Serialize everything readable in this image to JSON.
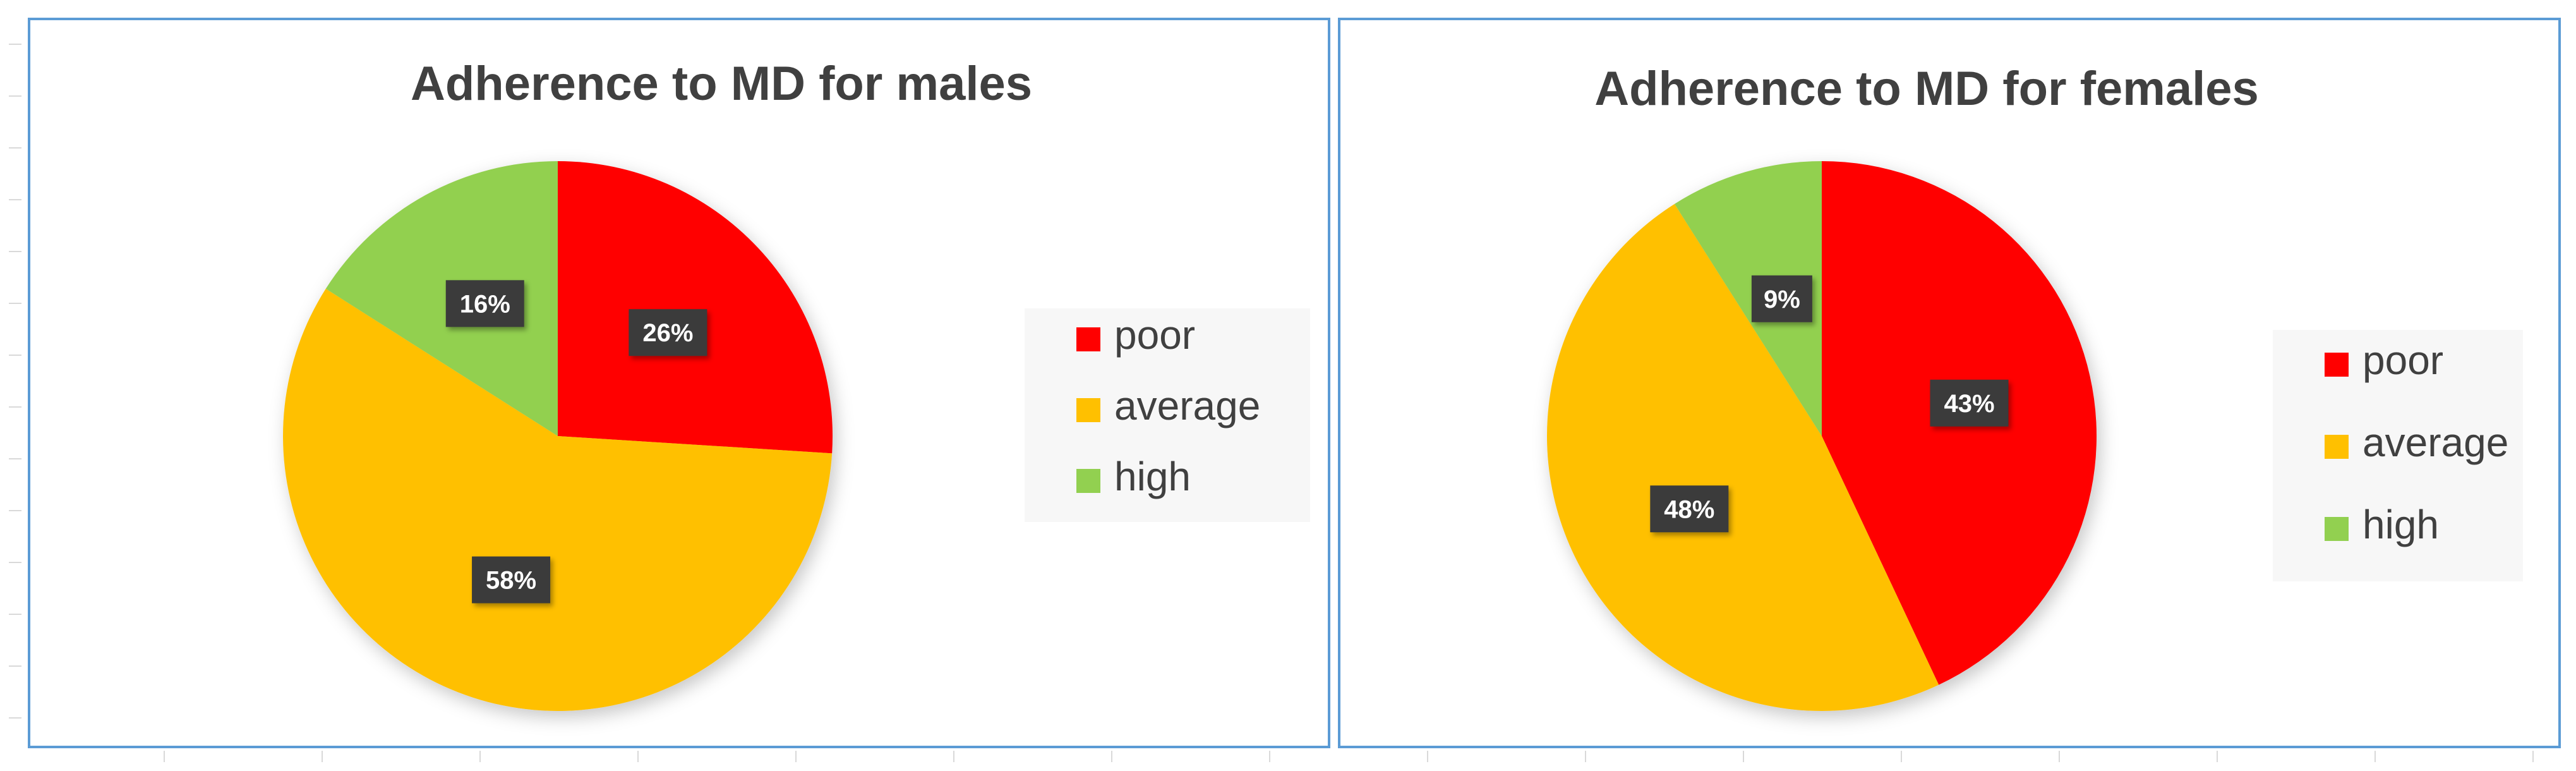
{
  "colors": {
    "poor": "#ff0000",
    "average": "#ffc000",
    "high": "#92d050",
    "frame": "#5b9bd5",
    "title": "#404040",
    "label_bg": "#3a3a3a",
    "legend_bg": "#f7f7f7",
    "gridline": "#d9d9d9"
  },
  "chart_data": [
    {
      "type": "pie",
      "title": "Adherence to MD for males",
      "slices": [
        {
          "label": "poor",
          "value": 26,
          "display": "26%",
          "color": "#ff0000"
        },
        {
          "label": "average",
          "value": 58,
          "display": "58%",
          "color": "#ffc000"
        },
        {
          "label": "high",
          "value": 16,
          "display": "16%",
          "color": "#92d050"
        }
      ],
      "legend": [
        "poor",
        "average",
        "high"
      ],
      "legend_position": "right"
    },
    {
      "type": "pie",
      "title": "Adherence to MD for females",
      "slices": [
        {
          "label": "poor",
          "value": 43,
          "display": "43%",
          "color": "#ff0000"
        },
        {
          "label": "average",
          "value": 48,
          "display": "48%",
          "color": "#ffc000"
        },
        {
          "label": "high",
          "value": 9,
          "display": "9%",
          "color": "#92d050"
        }
      ],
      "legend": [
        "poor",
        "average",
        "high"
      ],
      "legend_position": "right"
    }
  ]
}
